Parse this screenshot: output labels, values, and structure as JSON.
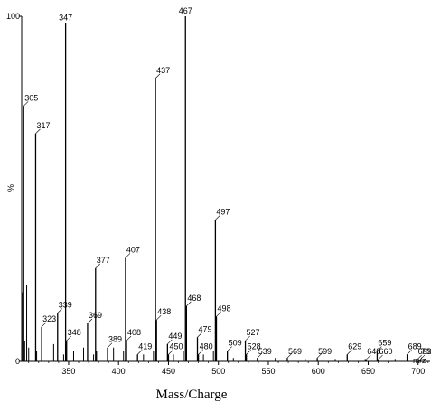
{
  "chart_data": {
    "type": "bar",
    "xlabel": "Mass/Charge",
    "x_unit_label": "m/z",
    "ylabel": "%",
    "ylim": [
      0,
      100
    ],
    "xlim": [
      303,
      712
    ],
    "x_ticks": [
      350,
      400,
      450,
      500,
      550,
      600,
      650,
      700
    ],
    "y_ticks": [
      0,
      100
    ],
    "grid": false,
    "peaks": [
      {
        "mz": 305,
        "intensity": 74,
        "label": "305"
      },
      {
        "mz": 317,
        "intensity": 66,
        "label": "317"
      },
      {
        "mz": 323,
        "intensity": 10,
        "label": "323"
      },
      {
        "mz": 339,
        "intensity": 14,
        "label": "339"
      },
      {
        "mz": 347,
        "intensity": 98,
        "label": "347"
      },
      {
        "mz": 348,
        "intensity": 6,
        "label": "348"
      },
      {
        "mz": 369,
        "intensity": 11,
        "label": "369"
      },
      {
        "mz": 377,
        "intensity": 27,
        "label": "377"
      },
      {
        "mz": 389,
        "intensity": 4,
        "label": "389"
      },
      {
        "mz": 407,
        "intensity": 30,
        "label": "407"
      },
      {
        "mz": 408,
        "intensity": 6,
        "label": "408"
      },
      {
        "mz": 419,
        "intensity": 2,
        "label": "419"
      },
      {
        "mz": 437,
        "intensity": 82,
        "label": "437"
      },
      {
        "mz": 438,
        "intensity": 12,
        "label": "438"
      },
      {
        "mz": 449,
        "intensity": 5,
        "label": "449"
      },
      {
        "mz": 450,
        "intensity": 2,
        "label": "450"
      },
      {
        "mz": 467,
        "intensity": 100,
        "label": "467"
      },
      {
        "mz": 468,
        "intensity": 16,
        "label": "468"
      },
      {
        "mz": 479,
        "intensity": 7,
        "label": "479"
      },
      {
        "mz": 480,
        "intensity": 2,
        "label": "480"
      },
      {
        "mz": 497,
        "intensity": 41,
        "label": "497"
      },
      {
        "mz": 498,
        "intensity": 13,
        "label": "498"
      },
      {
        "mz": 509,
        "intensity": 3,
        "label": "509"
      },
      {
        "mz": 527,
        "intensity": 6,
        "label": "527"
      },
      {
        "mz": 528,
        "intensity": 2,
        "label": "528"
      },
      {
        "mz": 539,
        "intensity": 1,
        "label": "539"
      },
      {
        "mz": 569,
        "intensity": 1,
        "label": "569"
      },
      {
        "mz": 599,
        "intensity": 1,
        "label": "599"
      },
      {
        "mz": 629,
        "intensity": 2,
        "label": "629"
      },
      {
        "mz": 648,
        "intensity": 0.5,
        "label": "648"
      },
      {
        "mz": 659,
        "intensity": 3,
        "label": "659"
      },
      {
        "mz": 660,
        "intensity": 0.5,
        "label": "660"
      },
      {
        "mz": 689,
        "intensity": 2,
        "label": "689"
      },
      {
        "mz": 699,
        "intensity": 0.5,
        "label": "699"
      },
      {
        "mz": 702,
        "intensity": 0.5,
        "label": "702"
      }
    ],
    "minor_peaks": [
      {
        "mz": 304,
        "intensity": 20
      },
      {
        "mz": 306,
        "intensity": 6
      },
      {
        "mz": 308,
        "intensity": 22
      },
      {
        "mz": 310,
        "intensity": 4
      },
      {
        "mz": 318,
        "intensity": 3
      },
      {
        "mz": 335,
        "intensity": 5
      },
      {
        "mz": 345,
        "intensity": 2
      },
      {
        "mz": 355,
        "intensity": 3
      },
      {
        "mz": 365,
        "intensity": 4
      },
      {
        "mz": 375,
        "intensity": 2
      },
      {
        "mz": 378,
        "intensity": 3
      },
      {
        "mz": 395,
        "intensity": 4
      },
      {
        "mz": 405,
        "intensity": 3
      },
      {
        "mz": 425,
        "intensity": 2
      },
      {
        "mz": 435,
        "intensity": 3
      },
      {
        "mz": 455,
        "intensity": 2
      },
      {
        "mz": 465,
        "intensity": 3
      },
      {
        "mz": 485,
        "intensity": 2
      },
      {
        "mz": 495,
        "intensity": 3
      },
      {
        "mz": 515,
        "intensity": 1
      },
      {
        "mz": 557,
        "intensity": 1
      },
      {
        "mz": 587,
        "intensity": 0.7
      },
      {
        "mz": 617,
        "intensity": 0.7
      },
      {
        "mz": 647,
        "intensity": 0.7
      },
      {
        "mz": 677,
        "intensity": 0.7
      }
    ]
  }
}
